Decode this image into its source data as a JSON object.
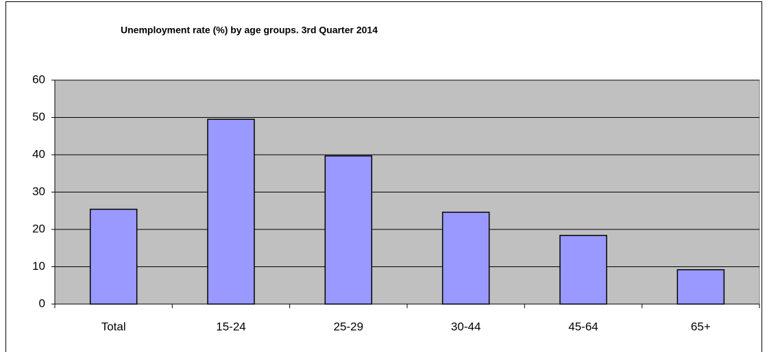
{
  "chart_data": {
    "type": "bar",
    "title": "Unemployment rate (%) by age groups. 3rd Quarter 2014",
    "categories": [
      "Total",
      "15-24",
      "25-29",
      "30-44",
      "45-64",
      "65+"
    ],
    "values": [
      25.4,
      49.5,
      39.7,
      24.6,
      18.4,
      9.2
    ],
    "color": "#9999ff",
    "ylim": [
      0,
      60
    ],
    "yticks": [
      0,
      10,
      20,
      30,
      40,
      50,
      60
    ],
    "grid": true
  }
}
